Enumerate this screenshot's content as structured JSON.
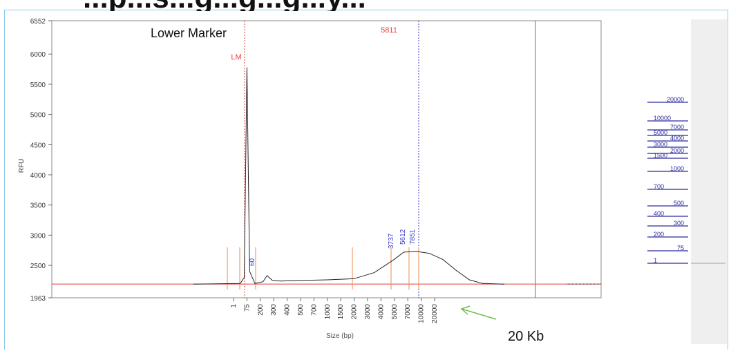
{
  "slide": {
    "header_text": "...p...s...g...g...g...y..."
  },
  "chart_data": {
    "type": "line",
    "xlabel": "Size (bp)",
    "ylabel": "RFU",
    "y_ticks": [
      6552,
      6000,
      5500,
      5000,
      4500,
      4000,
      3500,
      3000,
      2500,
      1963
    ],
    "ylim": [
      1963,
      6552
    ],
    "x_ticks": [
      "1",
      "75",
      "200",
      "300",
      "400",
      "500",
      "700",
      "1000",
      "1500",
      "2000",
      "3000",
      "4000",
      "5000",
      "7000",
      "10000",
      "20000"
    ],
    "series": [
      {
        "values": [
          {
            "x": -3,
            "y": 2190
          },
          {
            "x": 0.5,
            "y": 2200
          },
          {
            "x": 0.8,
            "y": 2300
          },
          {
            "x": 1.0,
            "y": 5780
          },
          {
            "x": 1.2,
            "y": 2400
          },
          {
            "x": 1.6,
            "y": 2200
          },
          {
            "x": 2.2,
            "y": 2230
          },
          {
            "x": 2.5,
            "y": 2330
          },
          {
            "x": 2.9,
            "y": 2250
          },
          {
            "x": 3.5,
            "y": 2240
          },
          {
            "x": 5,
            "y": 2250
          },
          {
            "x": 7,
            "y": 2260
          },
          {
            "x": 9,
            "y": 2280
          },
          {
            "x": 10.5,
            "y": 2380
          },
          {
            "x": 12,
            "y": 2600
          },
          {
            "x": 12.7,
            "y": 2720
          },
          {
            "x": 13.7,
            "y": 2730
          },
          {
            "x": 14.6,
            "y": 2700
          },
          {
            "x": 15.6,
            "y": 2600
          },
          {
            "x": 16.6,
            "y": 2420
          },
          {
            "x": 17.6,
            "y": 2260
          },
          {
            "x": 18.6,
            "y": 2200
          },
          {
            "x": 20.2,
            "y": 2190
          }
        ]
      }
    ],
    "lower_marker_label": "LM",
    "vertical_line_label": "5811",
    "peak_labels": [
      "3737",
      "5612",
      "7851"
    ],
    "small_peak_label": "60",
    "gel_ladder": [
      "20000",
      "10000",
      "7000",
      "5000",
      "4000",
      "3000",
      "2000",
      "1500",
      "1000",
      "700",
      "500",
      "400",
      "300",
      "200",
      "75",
      "1"
    ]
  },
  "annotations": {
    "lower_marker": "Lower Marker",
    "twenty_kb": "20 Kb"
  },
  "colors": {
    "trace": "#222222",
    "marker_line": "#e0403a",
    "peak_line": "#f08a4b",
    "blue_label": "#3a3ac8",
    "arrow": "#6cc04a",
    "frame": "#8fc9e8"
  }
}
